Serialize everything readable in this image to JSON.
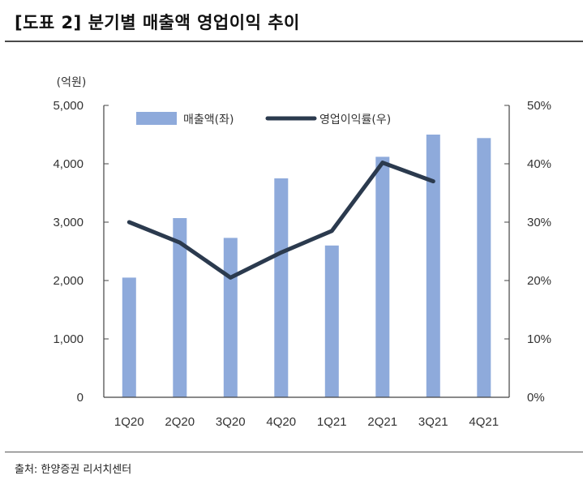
{
  "header": {
    "title": "[도표 2] 분기별 매출액 영업이익 추이"
  },
  "footer": {
    "source": "출처: 한양증권 리서치센터"
  },
  "colors": {
    "bar": "#8eaadb",
    "line": "#2b3a4e",
    "axis": "#444444",
    "rule": "#4a4a4a"
  },
  "chart_data": {
    "type": "bar",
    "categories": [
      "1Q20",
      "2Q20",
      "3Q20",
      "4Q20",
      "1Q21",
      "2Q21",
      "3Q21",
      "4Q21"
    ],
    "y_unit": "(억원)",
    "ylim": [
      0,
      5000
    ],
    "y_ticks": [
      "0",
      "1,000",
      "2,000",
      "3,000",
      "4,000",
      "5,000"
    ],
    "y2lim": [
      0,
      50
    ],
    "y2_ticks": [
      "0%",
      "10%",
      "20%",
      "30%",
      "40%",
      "50%"
    ],
    "grid": false,
    "legend_position": "top",
    "series": [
      {
        "name": "매출액(좌)",
        "type": "bar",
        "axis": "left",
        "values": [
          2050,
          3070,
          2730,
          3750,
          2600,
          4120,
          4500,
          4440
        ]
      },
      {
        "name": "영업이익률(우)",
        "type": "line",
        "axis": "right",
        "values": [
          30.0,
          26.5,
          20.5,
          24.8,
          28.5,
          40.2,
          37.0,
          null
        ]
      }
    ]
  }
}
